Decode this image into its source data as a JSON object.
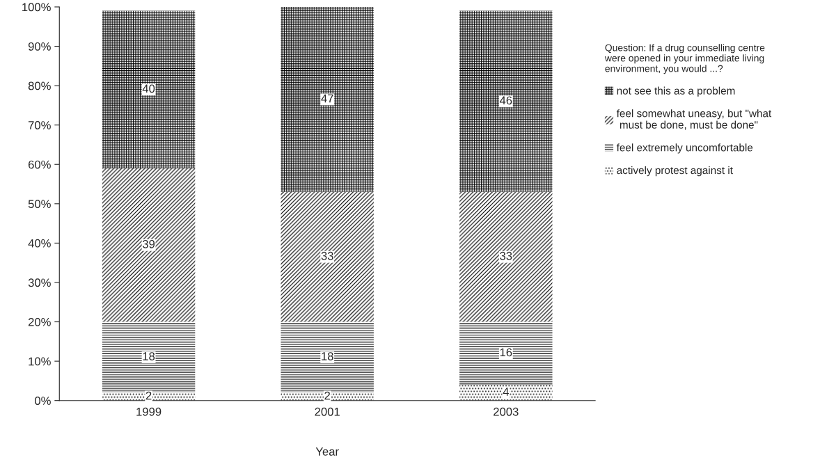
{
  "chart_data": {
    "type": "bar",
    "stacked": true,
    "xlabel": "Year",
    "categories": [
      "1999",
      "2001",
      "2003"
    ],
    "legend_title": "Question: If a drug counselling centre\nwere opened in your immediate living\nenvironment, you would ...?",
    "series": [
      {
        "name": "actively protest against it",
        "color": "#000000",
        "values": [
          2,
          2,
          4
        ]
      },
      {
        "name": "feel extremely uncomfortable",
        "color": "#000000",
        "values": [
          18,
          18,
          16
        ]
      },
      {
        "name": "feel somewhat uneasy, but \"what\n must be done, must be done\"",
        "color": "#000000",
        "values": [
          39,
          33,
          33
        ]
      },
      {
        "name": "not see this as a problem",
        "color": "#000000",
        "values": [
          40,
          47,
          46
        ]
      }
    ],
    "ylim": [
      0,
      100
    ],
    "yticks": [
      {
        "value": 0,
        "label": "0%"
      },
      {
        "value": 10,
        "label": "10%"
      },
      {
        "value": 20,
        "label": "20%"
      },
      {
        "value": 30,
        "label": "30%"
      },
      {
        "value": 40,
        "label": "40%"
      },
      {
        "value": 50,
        "label": "50%"
      },
      {
        "value": 60,
        "label": "60%"
      },
      {
        "value": 70,
        "label": "70%"
      },
      {
        "value": 80,
        "label": "80%"
      },
      {
        "value": 90,
        "label": "90%"
      },
      {
        "value": 100,
        "label": "100%"
      }
    ],
    "data_labels": true,
    "legend": "right",
    "grid": false
  }
}
